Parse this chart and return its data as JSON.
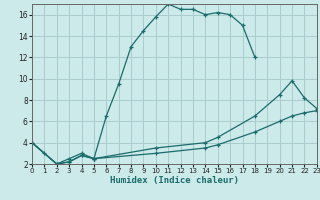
{
  "xlabel": "Humidex (Indice chaleur)",
  "bg_color": "#cceaea",
  "grid_color": "#aacccc",
  "line_color": "#1a6b6b",
  "xlim": [
    0,
    23
  ],
  "ylim": [
    2,
    17
  ],
  "xticks": [
    0,
    1,
    2,
    3,
    4,
    5,
    6,
    7,
    8,
    9,
    10,
    11,
    12,
    13,
    14,
    15,
    16,
    17,
    18,
    19,
    20,
    21,
    22,
    23
  ],
  "yticks": [
    2,
    4,
    6,
    8,
    10,
    12,
    14,
    16
  ],
  "series": [
    {
      "x": [
        0,
        1,
        2,
        3,
        4,
        5,
        6,
        7,
        8,
        9,
        10,
        11,
        12,
        13,
        14,
        15,
        16,
        17,
        18
      ],
      "y": [
        4,
        3,
        2,
        2.5,
        3,
        2.5,
        6.5,
        9.5,
        13.0,
        14.5,
        15.8,
        17.0,
        16.5,
        16.5,
        16.0,
        16.2,
        16.0,
        15.0,
        12.0
      ]
    },
    {
      "x": [
        0,
        2,
        3,
        4,
        5,
        10,
        14,
        15,
        18,
        20,
        21,
        22,
        23
      ],
      "y": [
        4,
        2,
        2.2,
        2.8,
        2.5,
        3.5,
        4.0,
        4.5,
        6.5,
        8.5,
        9.8,
        8.2,
        7.2
      ]
    },
    {
      "x": [
        0,
        2,
        3,
        4,
        5,
        10,
        14,
        15,
        18,
        20,
        21,
        22,
        23
      ],
      "y": [
        4,
        2,
        2.2,
        2.8,
        2.5,
        3.0,
        3.5,
        3.8,
        5.0,
        6.0,
        6.5,
        6.8,
        7.0
      ]
    }
  ]
}
